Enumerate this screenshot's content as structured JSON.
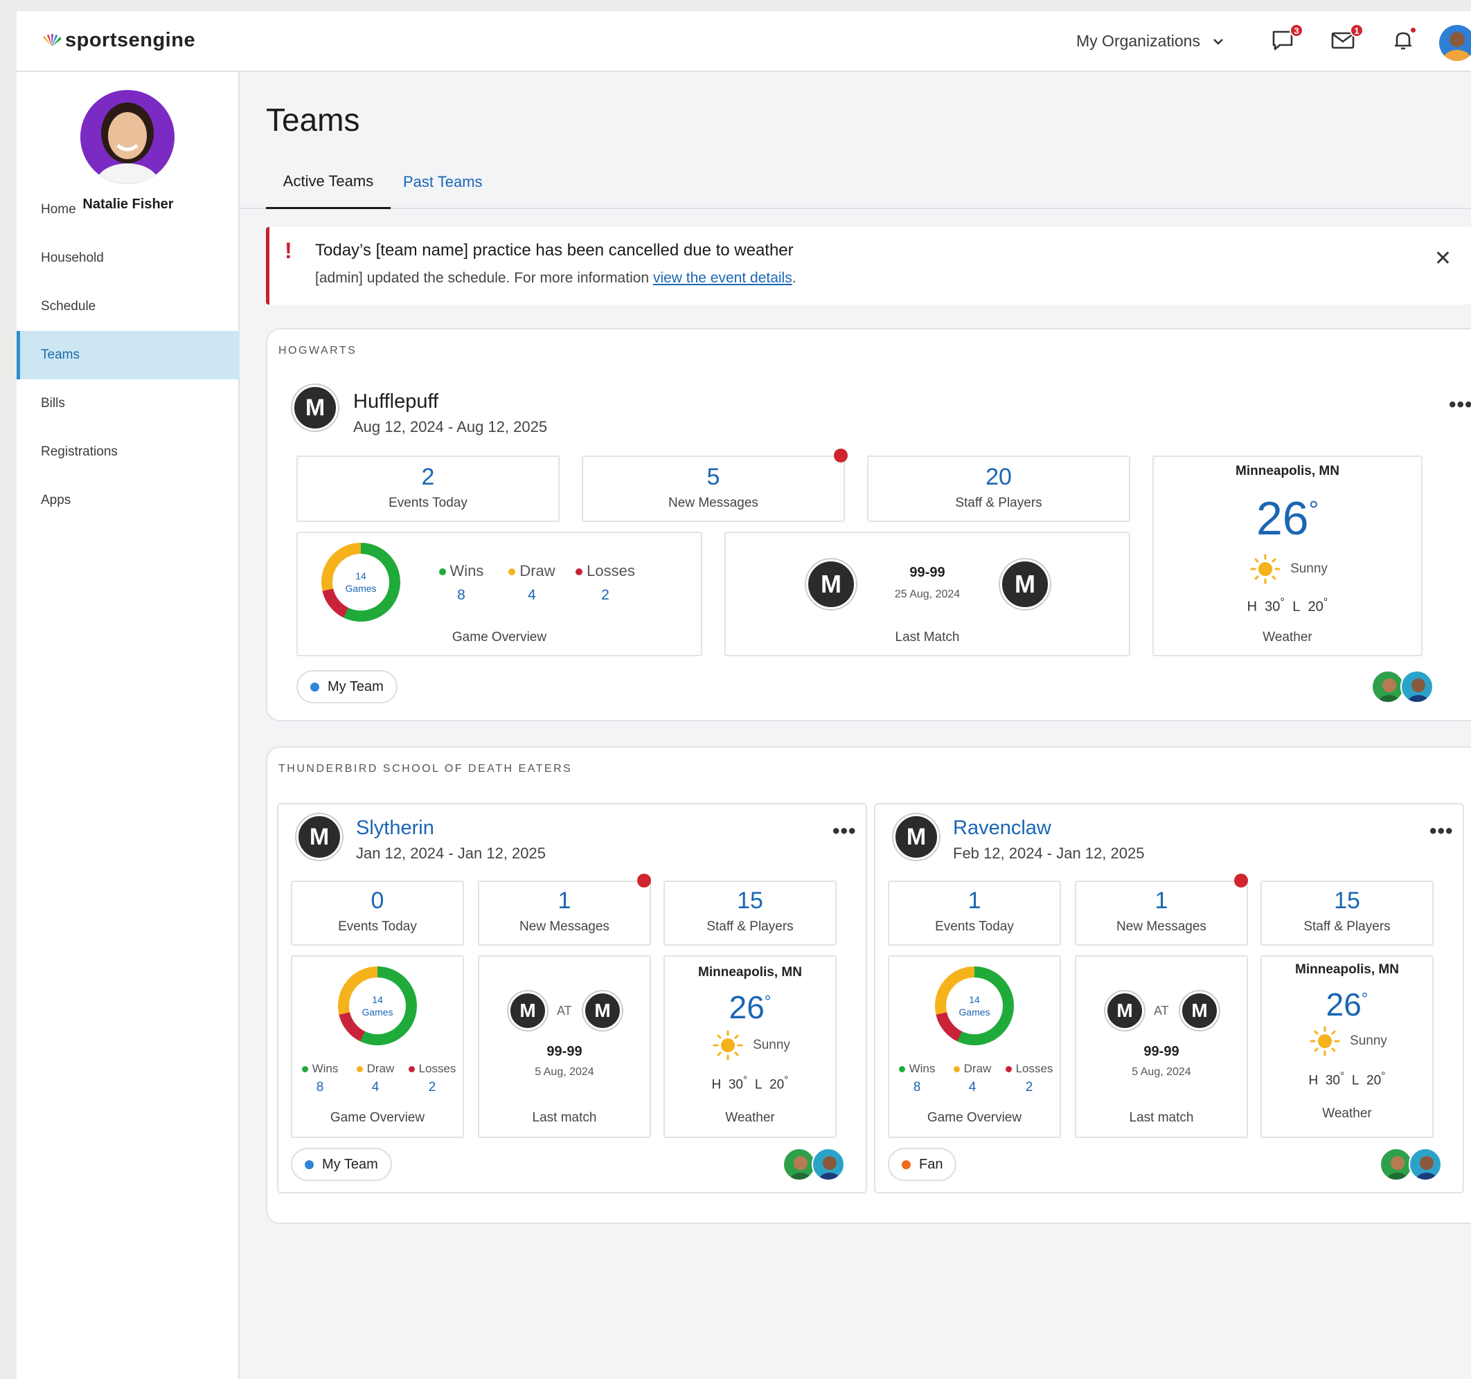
{
  "brand": {
    "name": "sportsengine"
  },
  "topbar": {
    "org_label": "My Organizations",
    "chat_badge": "3",
    "mail_badge": "1"
  },
  "profile": {
    "name": "Natalie Fisher"
  },
  "nav": [
    {
      "label": "Home"
    },
    {
      "label": "Household"
    },
    {
      "label": "Schedule"
    },
    {
      "label": "Teams",
      "active": true
    },
    {
      "label": "Bills"
    },
    {
      "label": "Registrations"
    },
    {
      "label": "Apps"
    }
  ],
  "page": {
    "title": "Teams",
    "tabs": [
      {
        "label": "Active Teams"
      },
      {
        "label": "Past Teams"
      }
    ]
  },
  "alert": {
    "title": "Today’s [team name] practice has been cancelled due to weather",
    "body": "[admin] updated the schedule. For more information ",
    "link": "view the event details",
    "end": "."
  },
  "colors": {
    "accent": "#1a66b4",
    "wins": "#1faa3a",
    "draw": "#f5b21b",
    "losses": "#c8233a",
    "alert": "#c81f2a",
    "my_team": "#2d86d6",
    "fan": "#f06a1c"
  },
  "groups": [
    {
      "label": "HOGWARTS",
      "teams": [
        {
          "name": "Hufflepuff",
          "dates": "Aug 12, 2024 - Aug 12, 2025",
          "events_today": "2",
          "events_label": "Events Today",
          "messages": "5",
          "messages_label": "New Messages",
          "staff": "20",
          "staff_label": "Staff & Players",
          "games_count": "14",
          "games_label": "Games",
          "wins_label": "Wins",
          "wins": "8",
          "draw_label": "Draw",
          "draw": "4",
          "losses_label": "Losses",
          "losses": "2",
          "overview_label": "Game Overview",
          "score": "99-99",
          "match_date": "25 Aug, 2024",
          "match_label": "Last Match",
          "city": "Minneapolis, MN",
          "temp": "26",
          "condition": "Sunny",
          "high_label": "H",
          "high": "30",
          "low_label": "L",
          "low": "20",
          "weather_label": "Weather",
          "chip": "My Team"
        }
      ]
    },
    {
      "label": "THUNDERBIRD SCHOOL OF DEATH EATERS",
      "teams": [
        {
          "name": "Slytherin",
          "dates": "Jan 12, 2024 - Jan 12, 2025",
          "events_today": "0",
          "events_label": "Events Today",
          "messages": "1",
          "messages_label": "New Messages",
          "staff": "15",
          "staff_label": "Staff & Players",
          "games_count": "14",
          "games_label": "Games",
          "wins_label": "Wins",
          "wins": "8",
          "draw_label": "Draw",
          "draw": "4",
          "losses_label": "Losses",
          "losses": "2",
          "overview_label": "Game Overview",
          "at_label": "AT",
          "score": "99-99",
          "match_date": "5 Aug, 2024",
          "match_label": "Last match",
          "city": "Minneapolis, MN",
          "temp": "26",
          "condition": "Sunny",
          "high_label": "H",
          "high": "30",
          "low_label": "L",
          "low": "20",
          "weather_label": "Weather",
          "chip": "My Team"
        },
        {
          "name": "Ravenclaw",
          "dates": "Feb 12, 2024 - Jan 12, 2025",
          "events_today": "1",
          "events_label": "Events Today",
          "messages": "1",
          "messages_label": "New Messages",
          "staff": "15",
          "staff_label": "Staff & Players",
          "games_count": "14",
          "games_label": "Games",
          "wins_label": "Wins",
          "wins": "8",
          "draw_label": "Draw",
          "draw": "4",
          "losses_label": "Losses",
          "losses": "2",
          "overview_label": "Game Overview",
          "at_label": "AT",
          "score": "99-99",
          "match_date": "5 Aug, 2024",
          "match_label": "Last match",
          "city": "Minneapolis, MN",
          "temp": "26",
          "condition": "Sunny",
          "high_label": "H",
          "high": "30",
          "low_label": "L",
          "low": "20",
          "weather_label": "Weather",
          "chip": "Fan"
        }
      ]
    }
  ]
}
